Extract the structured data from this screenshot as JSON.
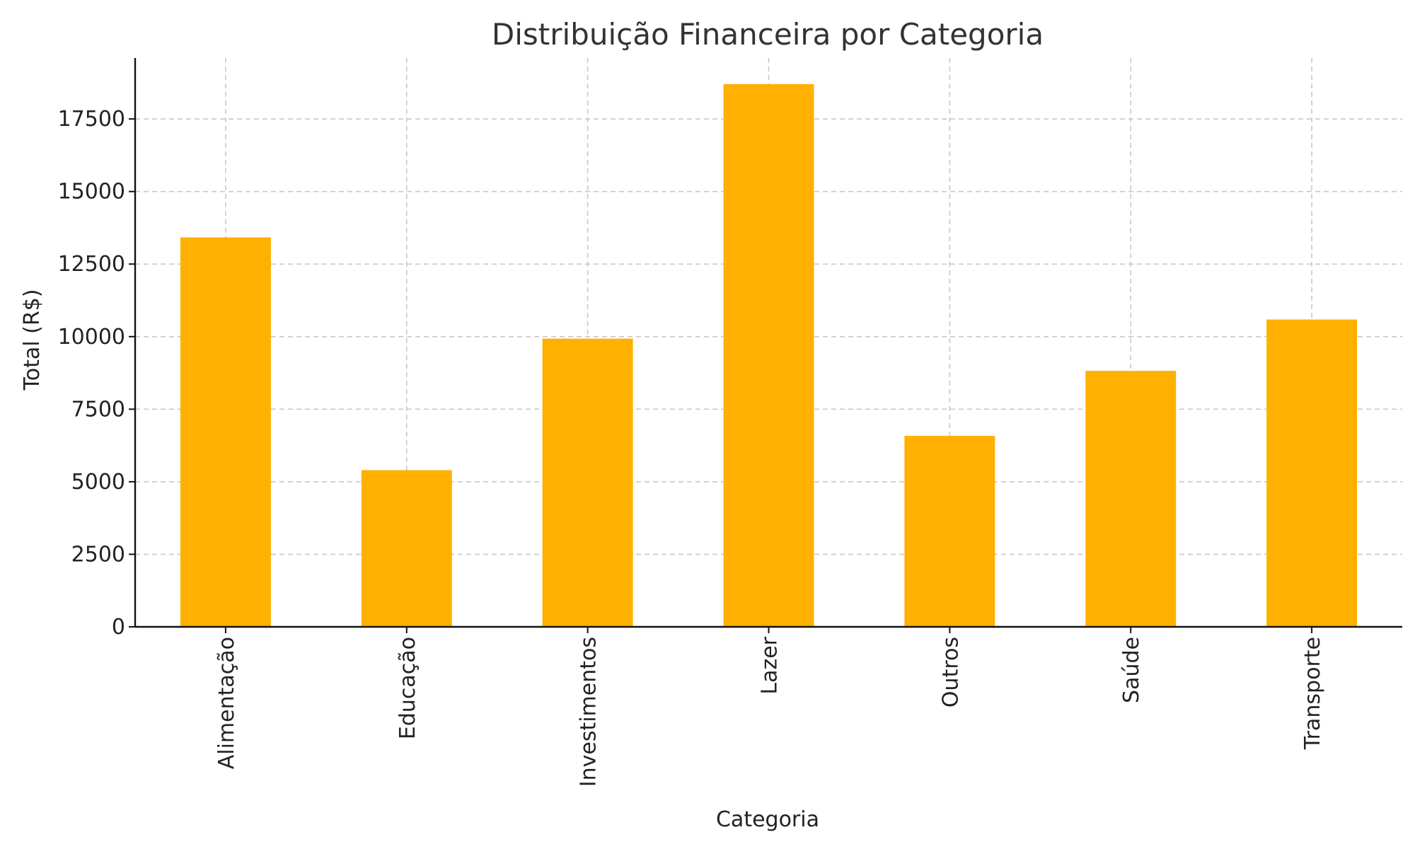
{
  "chart_data": {
    "type": "bar",
    "title": "Distribuição Financeira por Categoria",
    "xlabel": "Categoria",
    "ylabel": "Total (R$)",
    "categories": [
      "Alimentação",
      "Educação",
      "Investimentos",
      "Lazer",
      "Outros",
      "Saúde",
      "Transporte"
    ],
    "series": [
      {
        "values": [
          13420,
          5400,
          9930,
          18700,
          6580,
          8820,
          10590
        ],
        "color": "#FFB000"
      }
    ],
    "ylim": [
      0,
      19600
    ],
    "yticks": [
      0,
      2500,
      5000,
      7500,
      10000,
      12500,
      15000,
      17500
    ],
    "ytick_labels": [
      "0",
      "2500",
      "5000",
      "7500",
      "10000",
      "12500",
      "15000",
      "17500"
    ],
    "grid": true,
    "legend": "none"
  }
}
